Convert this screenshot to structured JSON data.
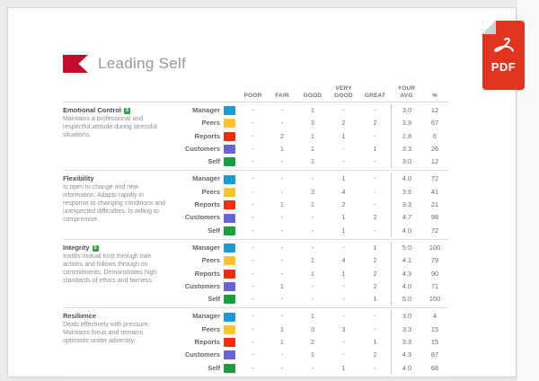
{
  "header": {
    "title": "Leading Self"
  },
  "pdf_icon": {
    "label": "PDF",
    "color": "#E2351F"
  },
  "brand": {
    "logo_color": "#C30C2E"
  },
  "table": {
    "rating_columns": [
      [
        "POOR"
      ],
      [
        "FAIR"
      ],
      [
        "GOOD"
      ],
      [
        "VERY",
        "GOOD"
      ],
      [
        "GREAT"
      ]
    ],
    "summary_columns": [
      [
        "YOUR",
        "AVG"
      ],
      [
        "%"
      ]
    ],
    "raters": [
      {
        "name": "Manager",
        "color": "#1B9AD6"
      },
      {
        "name": "Peers",
        "color": "#FFC32B"
      },
      {
        "name": "Reports",
        "color": "#F42D0D"
      },
      {
        "name": "Customers",
        "color": "#6A63D8"
      },
      {
        "name": "Self",
        "color": "#1D9E3D"
      }
    ],
    "badge_color": "#2EA046",
    "sections": [
      {
        "title": "Emotional Control",
        "badge": "S",
        "description": "Maintains a professional and respectful attitude during stressful situations.",
        "rows": [
          {
            "rater": "Manager",
            "ratings": [
              "-",
              "-",
              "1",
              "-",
              "-"
            ],
            "avg": "3.0",
            "pct": "12"
          },
          {
            "rater": "Peers",
            "ratings": [
              "-",
              "-",
              "3",
              "2",
              "2"
            ],
            "avg": "3.9",
            "pct": "67"
          },
          {
            "rater": "Reports",
            "ratings": [
              "-",
              "2",
              "1",
              "1",
              "-"
            ],
            "avg": "2.8",
            "pct": "6"
          },
          {
            "rater": "Customers",
            "ratings": [
              "-",
              "1",
              "1",
              "-",
              "1"
            ],
            "avg": "3.3",
            "pct": "26"
          },
          {
            "rater": "Self",
            "ratings": [
              "-",
              "-",
              "1",
              "-",
              "-"
            ],
            "avg": "3.0",
            "pct": "12"
          }
        ]
      },
      {
        "title": "Flexibility",
        "badge": null,
        "description": "Is open to change and new information. Adapts rapidly in response to changing conditions and unexpected difficulties. Is willing to compromise.",
        "rows": [
          {
            "rater": "Manager",
            "ratings": [
              "-",
              "-",
              "-",
              "1",
              "-"
            ],
            "avg": "4.0",
            "pct": "72"
          },
          {
            "rater": "Peers",
            "ratings": [
              "-",
              "-",
              "3",
              "4",
              "-"
            ],
            "avg": "3.6",
            "pct": "41"
          },
          {
            "rater": "Reports",
            "ratings": [
              "-",
              "1",
              "1",
              "2",
              "-"
            ],
            "avg": "3.3",
            "pct": "21"
          },
          {
            "rater": "Customers",
            "ratings": [
              "-",
              "-",
              "-",
              "1",
              "2"
            ],
            "avg": "4.7",
            "pct": "98"
          },
          {
            "rater": "Self",
            "ratings": [
              "-",
              "-",
              "-",
              "1",
              "-"
            ],
            "avg": "4.0",
            "pct": "72"
          }
        ]
      },
      {
        "title": "Integrity",
        "badge": "S",
        "description": "Instills mutual trust through own actions and follows through on commitments. Demonstrates high standards of ethics and fairness.",
        "rows": [
          {
            "rater": "Manager",
            "ratings": [
              "-",
              "-",
              "-",
              "-",
              "1"
            ],
            "avg": "5.0",
            "pct": "100"
          },
          {
            "rater": "Peers",
            "ratings": [
              "-",
              "-",
              "1",
              "4",
              "2"
            ],
            "avg": "4.1",
            "pct": "79"
          },
          {
            "rater": "Reports",
            "ratings": [
              "-",
              "-",
              "1",
              "1",
              "2"
            ],
            "avg": "4.3",
            "pct": "90"
          },
          {
            "rater": "Customers",
            "ratings": [
              "-",
              "1",
              "-",
              "-",
              "2"
            ],
            "avg": "4.0",
            "pct": "71"
          },
          {
            "rater": "Self",
            "ratings": [
              "-",
              "-",
              "-",
              "-",
              "1"
            ],
            "avg": "5.0",
            "pct": "100"
          }
        ]
      },
      {
        "title": "Resilience",
        "badge": null,
        "description": "Deals effectively with pressure. Maintains focus and remains optimistic under adversity.",
        "rows": [
          {
            "rater": "Manager",
            "ratings": [
              "-",
              "-",
              "1",
              "-",
              "-"
            ],
            "avg": "3.0",
            "pct": "4"
          },
          {
            "rater": "Peers",
            "ratings": [
              "-",
              "1",
              "3",
              "3",
              "-"
            ],
            "avg": "3.3",
            "pct": "15"
          },
          {
            "rater": "Reports",
            "ratings": [
              "-",
              "1",
              "2",
              "-",
              "1"
            ],
            "avg": "3.3",
            "pct": "15"
          },
          {
            "rater": "Customers",
            "ratings": [
              "-",
              "-",
              "1",
              "-",
              "2"
            ],
            "avg": "4.3",
            "pct": "87"
          },
          {
            "rater": "Self",
            "ratings": [
              "-",
              "-",
              "-",
              "1",
              "-"
            ],
            "avg": "4.0",
            "pct": "68"
          }
        ]
      }
    ]
  }
}
